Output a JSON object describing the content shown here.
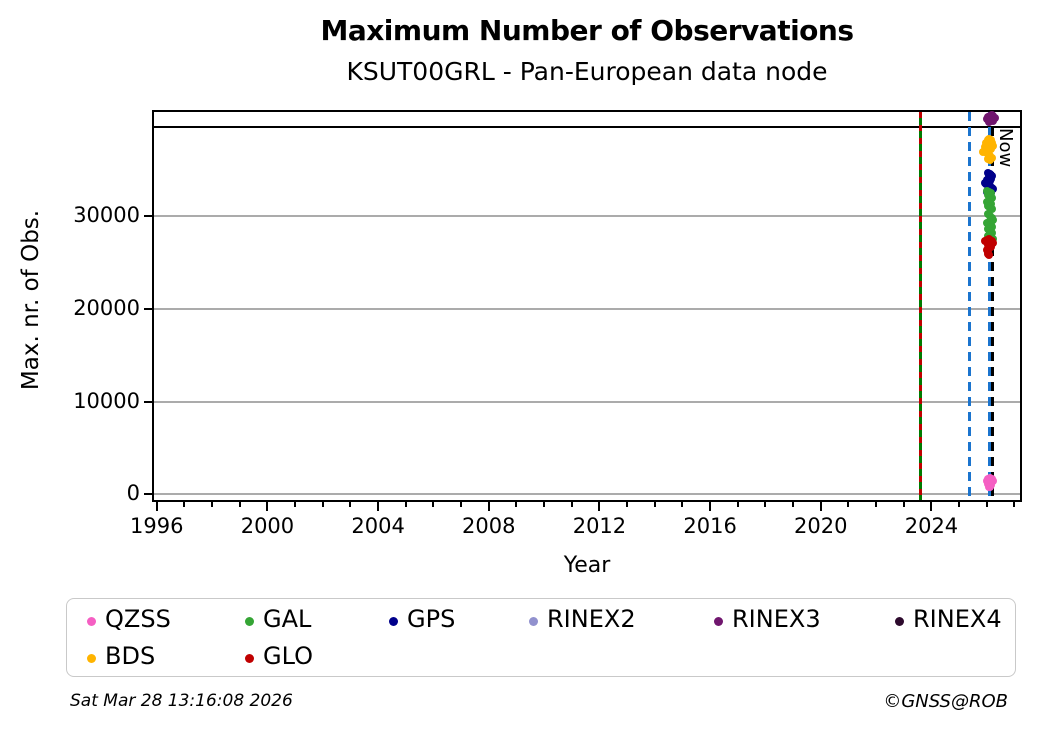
{
  "header": {
    "title": "Maximum Number of Observations",
    "subtitle": "KSUT00GRL - Pan-European data node"
  },
  "footer": {
    "timestamp": "Sat Mar 28 13:16:08 2026",
    "credit": "©GNSS@ROB"
  },
  "chart_data": {
    "type": "scatter",
    "title": "Maximum Number of Observations",
    "subtitle": "KSUT00GRL - Pan-European data node",
    "xlabel": "Year",
    "ylabel": "Max. nr. of Obs.",
    "now_label": "Now",
    "xlim": [
      1995.9,
      2027.2
    ],
    "ylim": [
      -600,
      41200
    ],
    "xticks": [
      1996,
      2000,
      2004,
      2008,
      2012,
      2016,
      2020,
      2024
    ],
    "xminor_range": [
      1996,
      2027
    ],
    "yticks": [
      0,
      10000,
      20000,
      30000
    ],
    "grid": "horizontal",
    "grid_color": "#ABABAB",
    "hline": {
      "value": 39600,
      "color": "#000000",
      "width": 2.5
    },
    "vlines": [
      {
        "year": 2023.6,
        "color": "#007B00",
        "style": "solid",
        "width": 3,
        "dash": null
      },
      {
        "year": 2023.6,
        "color": "#C00000",
        "style": "dashed",
        "width": 2.4,
        "dash": [
          6,
          7
        ]
      },
      {
        "year": 2025.38,
        "color": "#1B74CE",
        "style": "dashed",
        "width": 3,
        "dash": [
          9,
          6
        ]
      },
      {
        "year": 2026.1,
        "color": "#1B74CE",
        "style": "dashed",
        "width": 3,
        "dash": [
          9,
          6
        ]
      },
      {
        "year": 2026.22,
        "color": "#000000",
        "style": "dashed",
        "width": 3,
        "dash": [
          9,
          6
        ]
      }
    ],
    "series": [
      {
        "name": "RINEX3",
        "color": "#70166E",
        "points": [
          [
            2026.0,
            40400
          ],
          [
            2026.06,
            40650
          ],
          [
            2026.12,
            40800
          ],
          [
            2026.18,
            40850
          ],
          [
            2026.24,
            40750
          ],
          [
            2026.3,
            40500
          ],
          [
            2026.16,
            40300
          ],
          [
            2026.09,
            40150
          ],
          [
            2026.22,
            40200
          ]
        ]
      },
      {
        "name": "BDS",
        "color": "#FFB400",
        "points": [
          [
            2025.88,
            36900
          ],
          [
            2025.93,
            37400
          ],
          [
            2025.98,
            37900
          ],
          [
            2026.03,
            38200
          ],
          [
            2026.09,
            38300
          ],
          [
            2026.14,
            38150
          ],
          [
            2026.19,
            37850
          ],
          [
            2026.23,
            37500
          ],
          [
            2026.16,
            37250
          ],
          [
            2026.08,
            37000
          ],
          [
            2026.02,
            36750
          ],
          [
            2026.11,
            36500
          ],
          [
            2026.18,
            36250
          ],
          [
            2026.06,
            36100
          ],
          [
            2026.13,
            36000
          ]
        ]
      },
      {
        "name": "GPS",
        "color": "#00008B",
        "points": [
          [
            2026.05,
            34600
          ],
          [
            2026.12,
            34500
          ],
          [
            2026.18,
            34300
          ],
          [
            2026.08,
            34200
          ],
          [
            2026.15,
            34000
          ],
          [
            2026.02,
            33900
          ],
          [
            2026.1,
            33750
          ],
          [
            2025.92,
            33500
          ],
          [
            2025.98,
            33400
          ],
          [
            2026.05,
            33300
          ],
          [
            2026.12,
            33200
          ],
          [
            2026.18,
            33050
          ],
          [
            2026.24,
            32900
          ],
          [
            2026.1,
            32750
          ],
          [
            2026.02,
            32600
          ],
          [
            2026.16,
            32450
          ],
          [
            2026.08,
            32300
          ]
        ]
      },
      {
        "name": "GAL",
        "color": "#35A535",
        "points": [
          [
            2026.02,
            32700
          ],
          [
            2026.09,
            32600
          ],
          [
            2026.15,
            32450
          ],
          [
            2026.05,
            32250
          ],
          [
            2026.12,
            32100
          ],
          [
            2026.18,
            31900
          ],
          [
            2026.08,
            31700
          ],
          [
            2026.02,
            31500
          ],
          [
            2026.14,
            31300
          ],
          [
            2026.06,
            31100
          ],
          [
            2026.12,
            30900
          ],
          [
            2026.18,
            30700
          ],
          [
            2026.04,
            30200
          ],
          [
            2026.1,
            30000
          ],
          [
            2026.17,
            29800
          ],
          [
            2026.22,
            29600
          ],
          [
            2026.08,
            29400
          ],
          [
            2026.02,
            29200
          ],
          [
            2026.14,
            29000
          ],
          [
            2026.2,
            28800
          ],
          [
            2026.06,
            28600
          ],
          [
            2026.12,
            28400
          ],
          [
            2026.18,
            28200
          ],
          [
            2026.1,
            28000
          ],
          [
            2026.04,
            27800
          ],
          [
            2026.16,
            27600
          ],
          [
            2026.22,
            27500
          ]
        ]
      },
      {
        "name": "GLO",
        "color": "#C00000",
        "points": [
          [
            2025.95,
            27300
          ],
          [
            2026.01,
            27450
          ],
          [
            2026.07,
            27500
          ],
          [
            2026.13,
            27400
          ],
          [
            2026.19,
            27250
          ],
          [
            2026.24,
            27100
          ],
          [
            2026.1,
            27000
          ],
          [
            2026.04,
            26850
          ],
          [
            2026.16,
            26700
          ],
          [
            2026.08,
            26500
          ],
          [
            2026.01,
            26350
          ],
          [
            2026.06,
            26150
          ],
          [
            2026.03,
            25900
          ],
          [
            2026.08,
            25750
          ]
        ]
      },
      {
        "name": "QZSS",
        "color": "#F55FC3",
        "points": [
          [
            2026.0,
            1450
          ],
          [
            2026.06,
            1700
          ],
          [
            2026.12,
            1800
          ],
          [
            2026.18,
            1700
          ],
          [
            2026.24,
            1450
          ],
          [
            2026.1,
            1300
          ],
          [
            2026.03,
            1100
          ],
          [
            2026.16,
            1050
          ],
          [
            2026.08,
            850
          ],
          [
            2026.13,
            800
          ]
        ]
      },
      {
        "name": "RINEX2",
        "color": "#9191CE",
        "points": []
      },
      {
        "name": "RINEX4",
        "color": "#2D0A2D",
        "points": []
      }
    ],
    "legend_position": "bottom"
  },
  "legend": {
    "items": [
      {
        "label": "QZSS",
        "color": "#F55FC3"
      },
      {
        "label": "GAL",
        "color": "#35A535"
      },
      {
        "label": "GPS",
        "color": "#00008B"
      },
      {
        "label": "RINEX2",
        "color": "#9191CE"
      },
      {
        "label": "RINEX3",
        "color": "#70166E"
      },
      {
        "label": "RINEX4",
        "color": "#2D0A2D"
      },
      {
        "label": "BDS",
        "color": "#FFB400"
      },
      {
        "label": "GLO",
        "color": "#C00000"
      }
    ]
  }
}
